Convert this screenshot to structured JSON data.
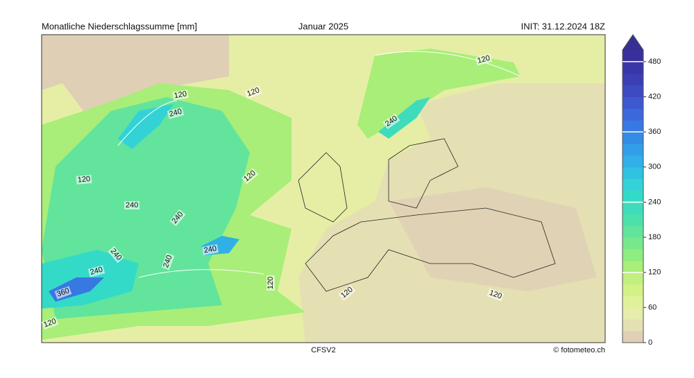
{
  "header": {
    "title": "Monatliche Niederschlagssumme [mm]",
    "period": "Januar 2025",
    "init": "INIT: 31.12.2024 18Z"
  },
  "footer": {
    "model": "CFSV2",
    "credit": "© fotometeo.ch"
  },
  "colorbar": {
    "levels": [
      0,
      20,
      40,
      60,
      80,
      100,
      120,
      140,
      160,
      180,
      200,
      220,
      240,
      260,
      280,
      300,
      320,
      340,
      360,
      380,
      400,
      420,
      440,
      460,
      480,
      500
    ],
    "colors": [
      "#dfcfb5",
      "#e4e0b4",
      "#e6ecaa",
      "#dff29a",
      "#d2f288",
      "#c2f07e",
      "#a8ee78",
      "#8eec80",
      "#78e88c",
      "#62e49c",
      "#4ce0ac",
      "#3edcbc",
      "#34dac8",
      "#32d2d6",
      "#30c2e0",
      "#30b0e6",
      "#329ee8",
      "#348ce6",
      "#3878e2",
      "#3c68dc",
      "#3e58d0",
      "#3e4ac2",
      "#3c3eb4",
      "#3a36a8",
      "#38309c",
      "#363092"
    ],
    "ticks": [
      0,
      60,
      120,
      180,
      240,
      300,
      360,
      420,
      480
    ],
    "contour_levels": [
      120,
      240,
      360,
      480
    ]
  },
  "map": {
    "contour_labels": [
      120,
      120,
      120,
      120,
      120,
      120,
      120,
      120,
      120,
      240,
      240,
      240,
      240,
      240,
      240,
      240,
      240,
      360
    ]
  }
}
